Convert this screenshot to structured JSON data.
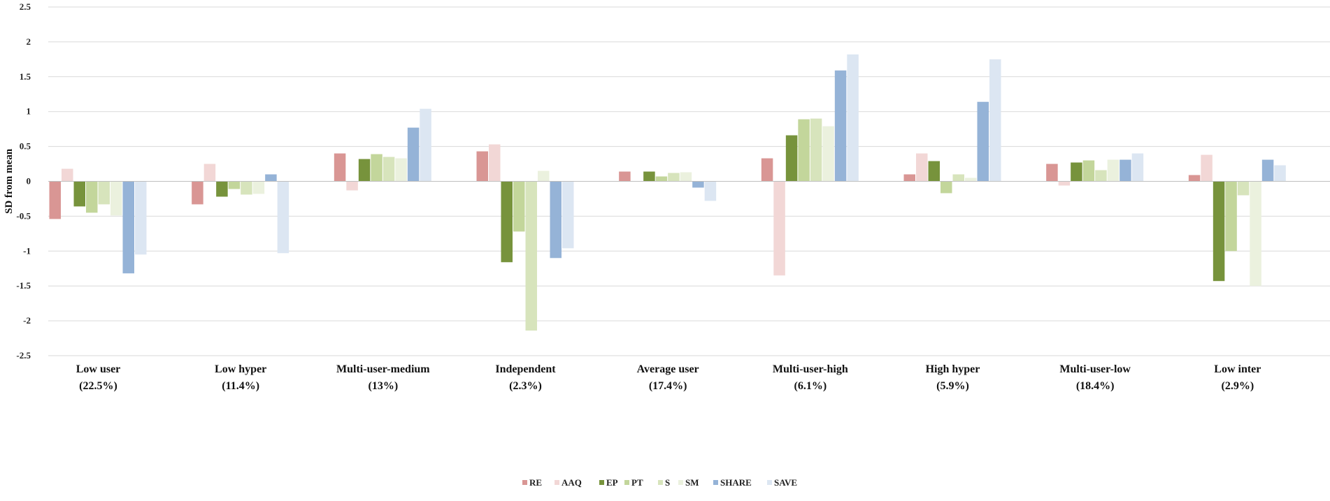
{
  "chart_data": {
    "type": "bar",
    "title": "",
    "xlabel": "",
    "ylabel": "SD from mean",
    "ylim": [
      -2.5,
      2.5
    ],
    "yticks": [
      "2.5",
      "2",
      "1.5",
      "1",
      "0.5",
      "0",
      "-0.5",
      "-1",
      "-1.5",
      "-2",
      "-2.5"
    ],
    "grid": true,
    "legend_position": "bottom",
    "categories": [
      [
        "Low user",
        "(22.5%)"
      ],
      [
        "Low hyper",
        "(11.4%)"
      ],
      [
        "Multi-user-medium",
        "(13%)"
      ],
      [
        "Independent",
        "(2.3%)"
      ],
      [
        "Average user",
        "(17.4%)"
      ],
      [
        "Multi-user-high",
        "(6.1%)"
      ],
      [
        "High hyper",
        "(5.9%)"
      ],
      [
        "Multi-user-low",
        "(18.4%)"
      ],
      [
        "Low inter",
        "(2.9%)"
      ]
    ],
    "series": [
      {
        "name": "RE",
        "color": "#d99694",
        "values": [
          -0.54,
          -0.33,
          0.4,
          0.43,
          0.14,
          0.33,
          0.1,
          0.25,
          0.09
        ]
      },
      {
        "name": "AAQ",
        "color": "#f2d7d6",
        "values": [
          0.18,
          0.25,
          -0.13,
          0.53,
          0.0,
          -1.35,
          0.4,
          -0.06,
          0.38
        ]
      },
      {
        "name": "EP",
        "color": "#77933c",
        "values": [
          -0.36,
          -0.22,
          0.32,
          -1.16,
          0.14,
          0.66,
          0.29,
          0.27,
          -1.43
        ]
      },
      {
        "name": "PT",
        "color": "#c3d69b",
        "values": [
          -0.45,
          -0.11,
          0.39,
          -0.72,
          0.07,
          0.89,
          -0.17,
          0.3,
          -1.0
        ]
      },
      {
        "name": "S",
        "color": "#d7e4bc",
        "values": [
          -0.33,
          -0.19,
          0.35,
          -2.14,
          0.12,
          0.9,
          0.1,
          0.16,
          -0.2
        ]
      },
      {
        "name": "SM",
        "color": "#ebf1de",
        "values": [
          -0.49,
          -0.18,
          0.33,
          0.15,
          0.13,
          0.79,
          0.05,
          0.31,
          -1.5
        ]
      },
      {
        "name": "SHARE",
        "color": "#95b3d7",
        "values": [
          -1.32,
          0.1,
          0.77,
          -1.1,
          -0.09,
          1.59,
          1.14,
          0.31,
          0.31
        ]
      },
      {
        "name": "SAVE",
        "color": "#dce6f2",
        "values": [
          -1.05,
          -1.03,
          1.04,
          -0.96,
          -0.28,
          1.82,
          1.75,
          0.4,
          0.23
        ]
      }
    ]
  }
}
